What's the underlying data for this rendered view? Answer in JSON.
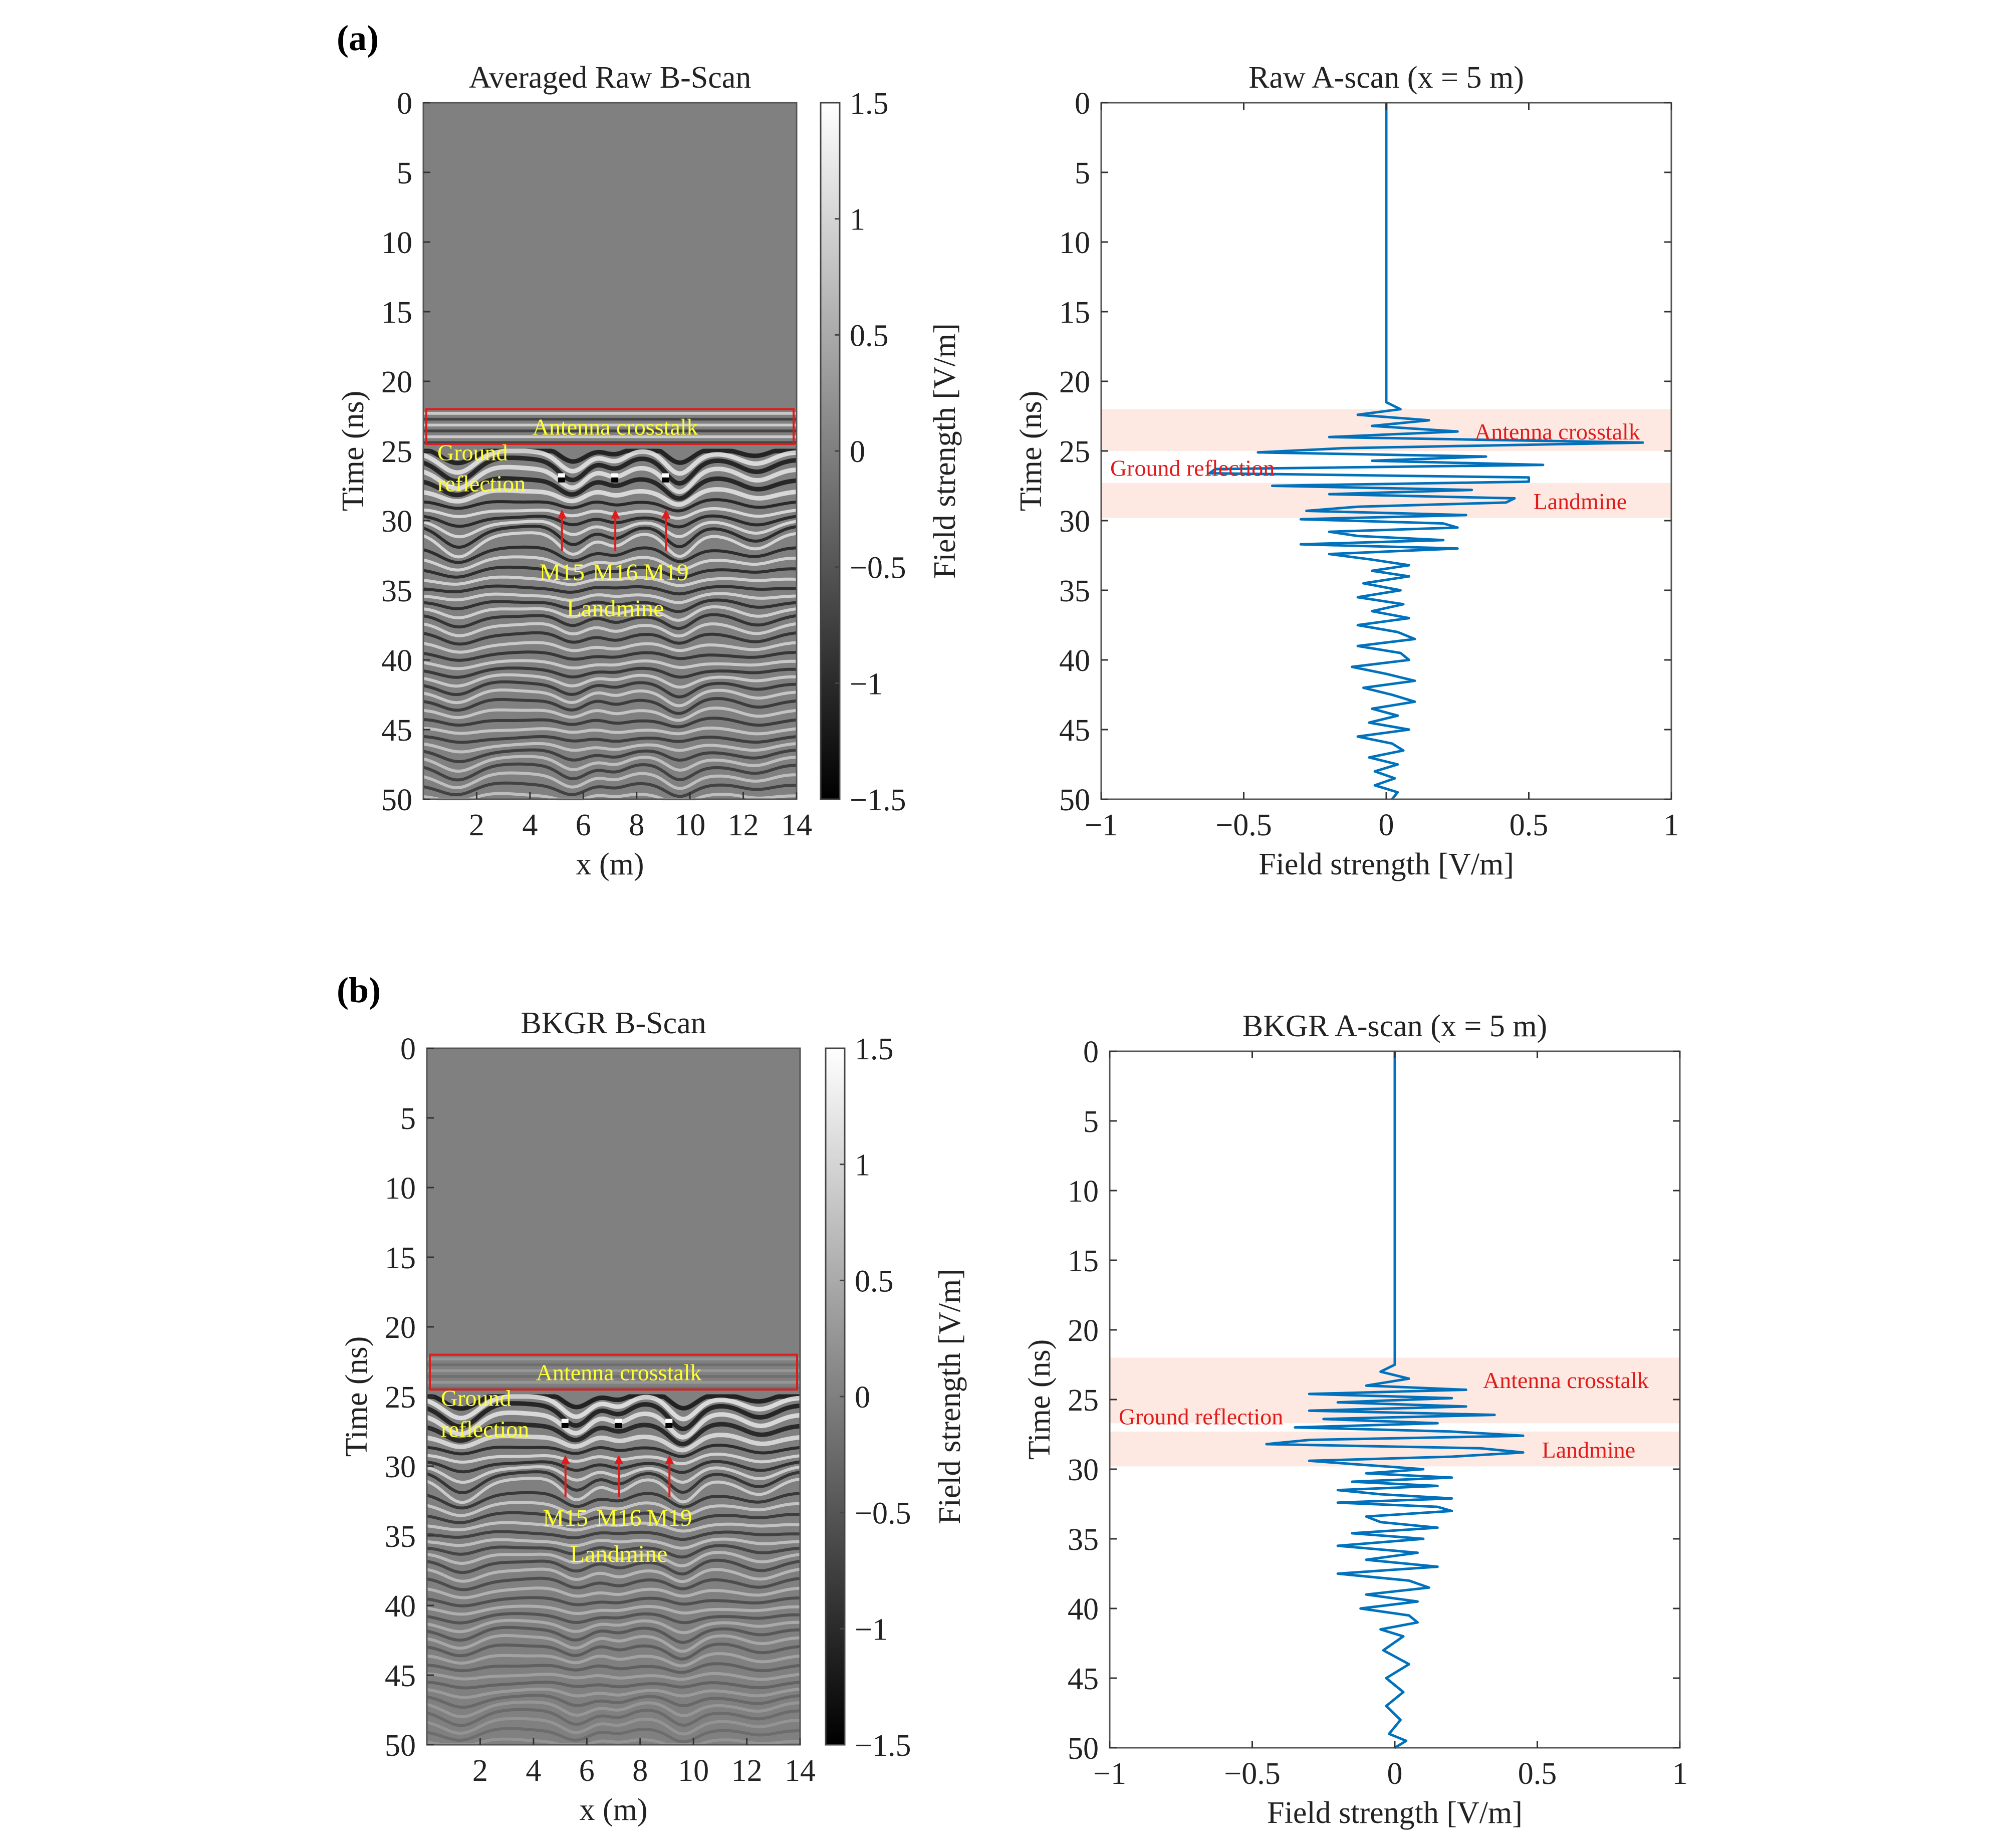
{
  "colors": {
    "axis": "#222222",
    "line": "#0072BD",
    "line_light": "#4a9fd6",
    "box": "#e01b1b",
    "arrow": "#e01b1b",
    "yellow_text": "#ffff33",
    "red_text": "#e01b1b",
    "band": "#fde9e1",
    "bscan_bg": "#808080"
  },
  "chart_data": [
    {
      "id": "a-bscan",
      "panel": "(a)",
      "type": "heatmap",
      "title": "Averaged Raw B-Scan",
      "xlabel": "x (m)",
      "ylabel": "Time (ns)",
      "xlim": [
        0,
        14
      ],
      "ylim": [
        0,
        50
      ],
      "xticks": [
        2,
        4,
        6,
        8,
        10,
        12,
        14
      ],
      "yticks": [
        0,
        5,
        10,
        15,
        20,
        25,
        30,
        35,
        40,
        45,
        50
      ],
      "colorbar": {
        "label": "Field strength [V/m]",
        "range": [
          -1.5,
          1.5
        ],
        "ticks": [
          1.5,
          1,
          0.5,
          0,
          -0.5,
          -1,
          -1.5
        ],
        "tick_labels": [
          "1.5",
          "1",
          "0.5",
          "0",
          "−0.5",
          "−1",
          "−1.5"
        ]
      },
      "crosstalk_box": {
        "t_start": 22,
        "t_end": 24.5,
        "label": "Antenna crosstalk"
      },
      "ground_label": [
        "Ground",
        "reflection"
      ],
      "mines": [
        {
          "name": "M15",
          "x": 5.2
        },
        {
          "name": "M16",
          "x": 7.2
        },
        {
          "name": "M19",
          "x": 9.1
        }
      ],
      "mine_arrow_times": [
        29.2,
        32.2
      ],
      "mine_label_time": 33.7,
      "landmine_label": "Landmine",
      "landmine_label_time": 36.3,
      "ground_time": 25.3,
      "clutter": "high"
    },
    {
      "id": "a-ascan",
      "panel": "(a)",
      "type": "line",
      "title": "Raw A-scan (x = 5 m)",
      "xlabel": "Field strength [V/m]",
      "ylabel": "Time (ns)",
      "xlim": [
        -1,
        1
      ],
      "ylim": [
        0,
        50
      ],
      "xticks": [
        -1,
        -0.5,
        0,
        0.5,
        1
      ],
      "xtick_labels": [
        "−1",
        "−0.5",
        "0",
        "0.5",
        "1"
      ],
      "yticks": [
        0,
        5,
        10,
        15,
        20,
        25,
        30,
        35,
        40,
        45,
        50
      ],
      "bands": [
        {
          "t_start": 22,
          "t_end": 25,
          "label": "Antenna crosstalk"
        },
        {
          "t_start": 27.3,
          "t_end": 29.8,
          "label": "Landmine"
        }
      ],
      "annotations": [
        {
          "text": "Antenna crosstalk",
          "x": 0.6,
          "t": 23.6
        },
        {
          "text": "Ground reflection",
          "x": -0.68,
          "t": 26.2
        },
        {
          "text": "Landmine",
          "x": 0.68,
          "t": 28.6
        }
      ],
      "series": {
        "name": "A-scan",
        "time": [
          0,
          5,
          10,
          15,
          20,
          21.5,
          22.0,
          22.4,
          22.8,
          23.2,
          23.6,
          24.0,
          24.4,
          24.8,
          25.1,
          25.4,
          25.7,
          26.0,
          26.3,
          26.6,
          26.9,
          27.2,
          27.5,
          27.8,
          28.1,
          28.4,
          28.7,
          29.0,
          29.3,
          29.6,
          29.9,
          30.2,
          30.5,
          30.8,
          31.1,
          31.4,
          31.7,
          32.0,
          32.4,
          32.8,
          33.2,
          33.6,
          34.0,
          34.5,
          35.0,
          35.5,
          36.0,
          36.5,
          37.0,
          37.5,
          38.0,
          38.5,
          39.0,
          39.5,
          40.0,
          40.5,
          41.0,
          41.5,
          42.0,
          42.5,
          43.0,
          43.5,
          44.0,
          44.5,
          45.0,
          45.5,
          46.0,
          46.5,
          47.0,
          47.5,
          48.0,
          48.5,
          49.0,
          49.5,
          50.0
        ],
        "values": [
          0.0,
          0.0,
          0.0,
          0.0,
          0.0,
          0.0,
          0.05,
          -0.1,
          0.15,
          -0.05,
          0.25,
          -0.2,
          0.9,
          -0.15,
          -0.45,
          0.35,
          -0.05,
          0.55,
          -0.6,
          -0.62,
          0.5,
          0.5,
          -0.4,
          0.3,
          -0.2,
          0.45,
          0.42,
          -0.1,
          -0.28,
          0.28,
          -0.3,
          0.2,
          0.25,
          -0.2,
          -0.1,
          0.2,
          -0.3,
          0.25,
          -0.2,
          -0.05,
          0.08,
          -0.05,
          0.08,
          -0.08,
          0.05,
          -0.1,
          0.06,
          -0.05,
          0.08,
          -0.1,
          0.04,
          0.1,
          -0.1,
          0.05,
          0.08,
          -0.12,
          0.0,
          0.1,
          -0.08,
          0.02,
          0.1,
          -0.05,
          0.04,
          -0.06,
          0.08,
          -0.1,
          0.02,
          0.06,
          -0.06,
          0.04,
          -0.04,
          0.03,
          -0.04,
          0.04,
          0.02
        ]
      }
    },
    {
      "id": "b-bscan",
      "panel": "(b)",
      "type": "heatmap",
      "title": "BKGR B-Scan",
      "xlabel": "x (m)",
      "ylabel": "Time (ns)",
      "xlim": [
        0,
        14
      ],
      "ylim": [
        0,
        50
      ],
      "xticks": [
        2,
        4,
        6,
        8,
        10,
        12,
        14
      ],
      "yticks": [
        0,
        5,
        10,
        15,
        20,
        25,
        30,
        35,
        40,
        45,
        50
      ],
      "colorbar": {
        "label": "Field strength [V/m]",
        "range": [
          -1.5,
          1.5
        ],
        "ticks": [
          1.5,
          1,
          0.5,
          0,
          -0.5,
          -1,
          -1.5
        ],
        "tick_labels": [
          "1.5",
          "1",
          "0.5",
          "0",
          "−0.5",
          "−1",
          "−1.5"
        ]
      },
      "crosstalk_box": {
        "t_start": 22,
        "t_end": 24.5,
        "label": "Antenna crosstalk"
      },
      "ground_label": [
        "Ground",
        "reflection"
      ],
      "mines": [
        {
          "name": "M15",
          "x": 5.2
        },
        {
          "name": "M16",
          "x": 7.2
        },
        {
          "name": "M19",
          "x": 9.1
        }
      ],
      "mine_arrow_times": [
        29.2,
        32.2
      ],
      "mine_label_time": 33.7,
      "landmine_label": "Landmine",
      "landmine_label_time": 36.3,
      "ground_time": 25.3,
      "clutter": "low"
    },
    {
      "id": "b-ascan",
      "panel": "(b)",
      "type": "line",
      "title": "BKGR A-scan (x = 5 m)",
      "xlabel": "Field strength [V/m]",
      "ylabel": "Time (ns)",
      "xlim": [
        -1,
        1
      ],
      "ylim": [
        0,
        50
      ],
      "xticks": [
        -1,
        -0.5,
        0,
        0.5,
        1
      ],
      "xtick_labels": [
        "−1",
        "−0.5",
        "0",
        "0.5",
        "1"
      ],
      "yticks": [
        0,
        5,
        10,
        15,
        20,
        25,
        30,
        35,
        40,
        45,
        50
      ],
      "bands": [
        {
          "t_start": 22,
          "t_end": 26.7,
          "label": "Antenna crosstalk"
        },
        {
          "t_start": 27.3,
          "t_end": 29.8,
          "label": "Landmine"
        }
      ],
      "annotations": [
        {
          "text": "Antenna crosstalk",
          "x": 0.6,
          "t": 23.6
        },
        {
          "text": "Ground reflection",
          "x": -0.68,
          "t": 26.2
        },
        {
          "text": "Landmine",
          "x": 0.68,
          "t": 28.6
        }
      ],
      "series": {
        "name": "A-scan",
        "time": [
          0,
          5,
          10,
          15,
          20,
          22.5,
          23.0,
          23.5,
          24.0,
          24.3,
          24.6,
          24.9,
          25.2,
          25.5,
          25.8,
          26.1,
          26.4,
          26.7,
          27.0,
          27.3,
          27.6,
          27.9,
          28.2,
          28.5,
          28.8,
          29.1,
          29.4,
          29.7,
          30.0,
          30.3,
          30.6,
          30.9,
          31.2,
          31.5,
          31.8,
          32.1,
          32.4,
          32.7,
          33.0,
          33.4,
          33.8,
          34.2,
          34.6,
          35.0,
          35.5,
          36.0,
          36.5,
          37.0,
          37.5,
          38.0,
          38.5,
          39.0,
          39.5,
          40.0,
          40.5,
          41.0,
          41.5,
          42.0,
          43.0,
          44.0,
          45.0,
          46.0,
          47.0,
          48.0,
          49.0,
          49.5,
          50.0
        ],
        "values": [
          0.0,
          0.0,
          0.0,
          0.0,
          0.0,
          0.0,
          -0.05,
          0.05,
          -0.1,
          0.25,
          -0.3,
          0.2,
          -0.2,
          0.25,
          -0.3,
          0.35,
          -0.25,
          0.15,
          -0.35,
          0.2,
          0.45,
          -0.3,
          -0.45,
          0.3,
          0.45,
          0.2,
          -0.3,
          -0.1,
          0.1,
          -0.1,
          0.2,
          -0.15,
          0.15,
          -0.2,
          -0.05,
          0.2,
          -0.2,
          0.15,
          0.2,
          -0.1,
          -0.05,
          0.15,
          -0.15,
          0.1,
          -0.2,
          0.08,
          -0.1,
          0.15,
          -0.2,
          0.05,
          0.12,
          -0.1,
          0.08,
          -0.12,
          0.05,
          0.08,
          -0.05,
          0.03,
          -0.04,
          0.05,
          -0.03,
          0.03,
          -0.03,
          0.02,
          -0.02,
          0.04,
          0.0
        ]
      }
    }
  ]
}
